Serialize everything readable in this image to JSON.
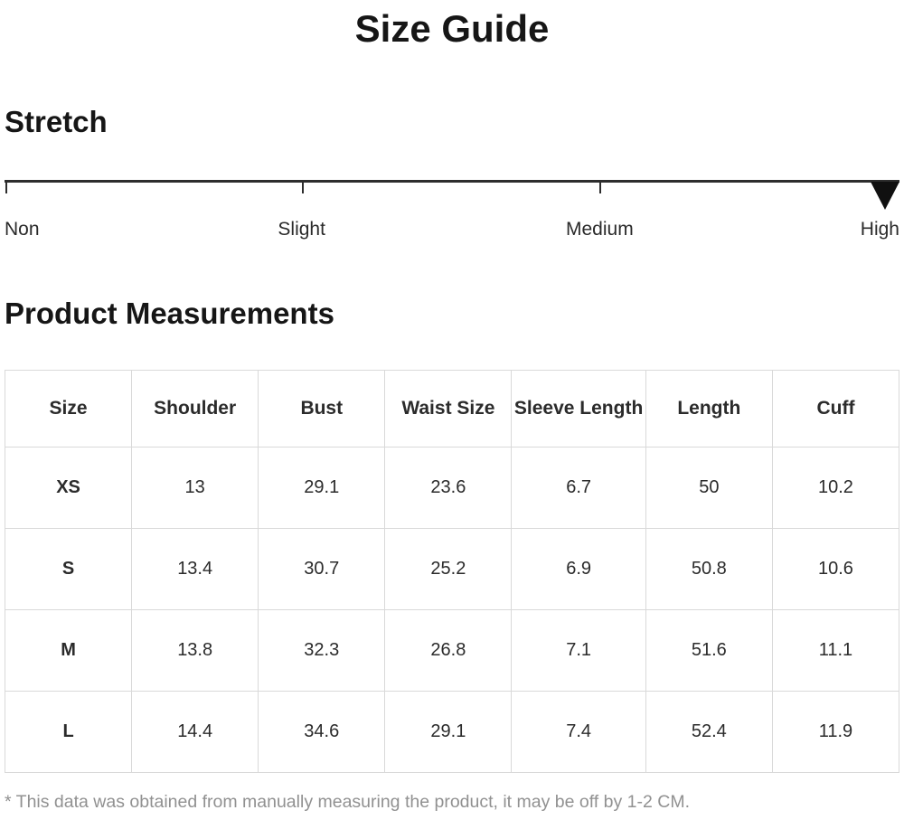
{
  "page": {
    "title": "Size Guide",
    "footnote": "* This data was obtained from manually measuring the product, it may be off by 1-2 CM."
  },
  "stretch": {
    "heading": "Stretch",
    "levels": [
      "Non",
      "Slight",
      "Medium",
      "High"
    ],
    "selected_level": "High",
    "marker_icon": "triangle-down",
    "line_color": "#2d2d2d",
    "marker_color": "#101010"
  },
  "measurements": {
    "heading": "Product Measurements",
    "columns": [
      "Size",
      "Shoulder",
      "Bust",
      "Waist Size",
      "Sleeve Length",
      "Length",
      "Cuff"
    ],
    "rows": [
      {
        "size": "XS",
        "values": [
          "13",
          "29.1",
          "23.6",
          "6.7",
          "50",
          "10.2"
        ]
      },
      {
        "size": "S",
        "values": [
          "13.4",
          "30.7",
          "25.2",
          "6.9",
          "50.8",
          "10.6"
        ]
      },
      {
        "size": "M",
        "values": [
          "13.8",
          "32.3",
          "26.8",
          "7.1",
          "51.6",
          "11.1"
        ]
      },
      {
        "size": "L",
        "values": [
          "14.4",
          "34.6",
          "29.1",
          "7.4",
          "52.4",
          "11.9"
        ]
      }
    ],
    "border_color": "#d9d9d9"
  }
}
